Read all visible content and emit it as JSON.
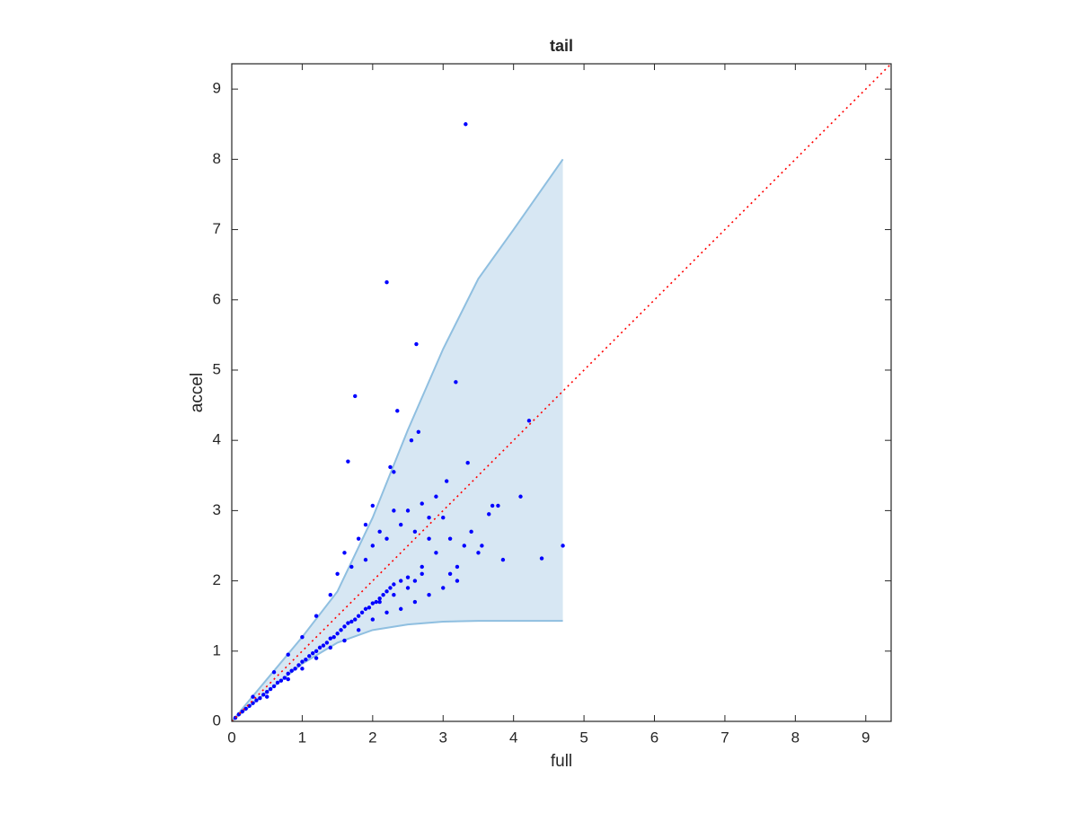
{
  "chart_data": {
    "type": "scatter",
    "title": "tail",
    "x_label": "full",
    "y_label": "accel",
    "xlim": [
      0,
      9.36
    ],
    "ylim": [
      0,
      9.36
    ],
    "xticks": [
      0,
      1,
      2,
      3,
      4,
      5,
      6,
      7,
      8,
      9
    ],
    "yticks": [
      0,
      1,
      2,
      3,
      4,
      5,
      6,
      7,
      8,
      9
    ],
    "band": {
      "color": "#8fbfe0",
      "fill": "#d7e7f3",
      "x": [
        0,
        0.5,
        1,
        1.5,
        2,
        2.5,
        3,
        3.5,
        4,
        4.7
      ],
      "upper": [
        0,
        0.6,
        1.2,
        1.85,
        2.9,
        4.15,
        5.3,
        6.3,
        7.0,
        8.0
      ],
      "lower": [
        0,
        0.42,
        0.82,
        1.12,
        1.3,
        1.38,
        1.42,
        1.43,
        1.43,
        1.43
      ]
    },
    "reference_line": {
      "color": "#ff0000",
      "x": [
        0,
        9.36
      ],
      "y": [
        0,
        9.36
      ]
    },
    "series": [
      {
        "color": "#0000ff",
        "x": [
          0.05,
          0.1,
          0.15,
          0.2,
          0.25,
          0.3,
          0.35,
          0.4,
          0.45,
          0.5,
          0.55,
          0.6,
          0.65,
          0.7,
          0.75,
          0.8,
          0.85,
          0.9,
          0.95,
          1.0,
          1.05,
          1.1,
          1.15,
          1.2,
          1.25,
          1.3,
          1.35,
          1.4,
          1.45,
          1.5,
          1.55,
          1.6,
          1.65,
          1.7,
          1.75,
          1.8,
          1.85,
          1.9,
          1.95,
          2.0,
          2.05,
          2.1,
          2.15,
          2.2,
          2.25,
          2.3,
          2.4,
          2.5,
          2.6,
          2.7,
          0.3,
          0.6,
          0.8,
          1.0,
          1.2,
          1.4,
          1.5,
          1.6,
          1.7,
          1.8,
          1.9,
          2.0,
          2.1,
          2.2,
          2.3,
          2.4,
          2.5,
          2.6,
          2.7,
          2.8,
          2.9,
          0.5,
          0.8,
          1.0,
          1.2,
          1.4,
          1.6,
          1.8,
          2.0,
          2.2,
          2.4,
          2.6,
          2.8,
          3.0,
          3.2,
          2.7,
          2.9,
          3.1,
          3.3,
          3.5,
          3.2,
          3.4,
          2.5,
          2.3,
          2.1,
          3.0,
          3.1,
          2.8,
          3.32,
          2.2,
          2.62,
          1.75,
          3.18,
          2.35,
          4.22,
          2.55,
          2.65,
          1.65,
          3.35,
          4.1,
          4.7,
          4.4,
          3.85,
          3.7,
          3.78,
          3.65,
          3.55,
          3.05,
          2.25,
          2.3,
          2.0,
          1.9
        ],
        "values": [
          0.05,
          0.1,
          0.14,
          0.18,
          0.22,
          0.26,
          0.3,
          0.33,
          0.38,
          0.42,
          0.46,
          0.5,
          0.55,
          0.58,
          0.62,
          0.68,
          0.72,
          0.75,
          0.8,
          0.85,
          0.88,
          0.93,
          0.97,
          1.0,
          1.05,
          1.08,
          1.12,
          1.18,
          1.2,
          1.25,
          1.3,
          1.35,
          1.4,
          1.42,
          1.45,
          1.5,
          1.55,
          1.6,
          1.62,
          1.68,
          1.7,
          1.75,
          1.8,
          1.85,
          1.9,
          1.95,
          2.0,
          2.05,
          2.0,
          2.1,
          0.35,
          0.7,
          0.95,
          1.2,
          1.5,
          1.8,
          2.1,
          2.4,
          2.2,
          2.6,
          2.3,
          2.5,
          2.7,
          2.6,
          3.0,
          2.8,
          3.0,
          2.7,
          3.1,
          2.9,
          3.2,
          0.35,
          0.6,
          0.75,
          0.9,
          1.05,
          1.15,
          1.3,
          1.45,
          1.55,
          1.6,
          1.7,
          1.8,
          1.9,
          2.0,
          2.2,
          2.4,
          2.6,
          2.5,
          2.4,
          2.2,
          2.7,
          1.9,
          1.8,
          1.7,
          2.9,
          2.1,
          2.6,
          8.5,
          6.25,
          5.37,
          4.63,
          4.83,
          4.42,
          4.28,
          4.0,
          4.12,
          3.7,
          3.68,
          3.2,
          2.5,
          2.32,
          2.3,
          3.07,
          3.07,
          2.95,
          2.5,
          3.42,
          3.62,
          3.55,
          3.07,
          2.8
        ]
      }
    ]
  }
}
